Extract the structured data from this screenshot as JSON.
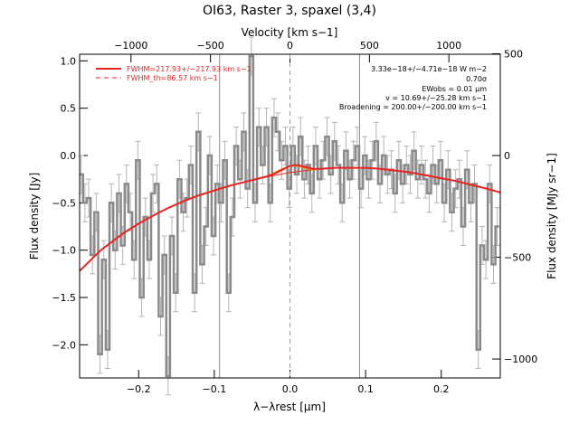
{
  "chart_data": {
    "type": "line",
    "title": "OI63, Raster 3, spaxel (3,4)",
    "xlabel": "λ−λrest [μm]",
    "ylabel": "Flux density [Jy]",
    "top_xlabel": "Velocity [km s−1]",
    "right_ylabel": "Flux density [MJy sr−1]",
    "xlim": [
      -0.278,
      0.278
    ],
    "ylim": [
      -2.35,
      1.07
    ],
    "grid": false,
    "legend_position": "top-left",
    "x_ticks": [
      -0.2,
      -0.1,
      0.0,
      0.1,
      0.2
    ],
    "x_tick_labels": [
      "−0.2",
      "−0.1",
      "0.0",
      "0.1",
      "0.2"
    ],
    "y_ticks": [
      -2.0,
      -1.5,
      -1.0,
      -0.5,
      0.0,
      0.5,
      1.0
    ],
    "y_tick_labels": [
      "−2.0",
      "−1.5",
      "−1.0",
      "−0.5",
      "0.0",
      "0.5",
      "1.0"
    ],
    "velocity_ticks": [
      -1000,
      -500,
      0,
      500,
      1000
    ],
    "velocity_tick_labels": [
      "−1000",
      "−500",
      "0",
      "500",
      "1000"
    ],
    "km_s_per_micron": 4760,
    "right_ticks": [
      500,
      0,
      -500,
      -1000
    ],
    "right_tick_labels": [
      "500",
      "0",
      "−500",
      "−1000"
    ],
    "jy_per_mjysr": 0.00215,
    "vertical_lines_solid": [
      -0.093,
      0.092
    ],
    "vertical_line_dashed": 0.0,
    "legend": [
      {
        "label": "FWHM=217.93+/−217.93 km s−1",
        "style": "solid"
      },
      {
        "label": "FWHM_th=86.57 km s−1",
        "style": "dashed"
      }
    ],
    "annotations": [
      "3.33e−18+/−4.71e−18 W m−2",
      "0.70σ",
      "EWobs = 0.01 μm",
      "v = 10.69+/−25.28 km s−1",
      "Broadening = 200.00+/−200.00 km s−1"
    ],
    "series": [
      {
        "name": "spectrum",
        "x": [
          -0.276,
          -0.271,
          -0.266,
          -0.261,
          -0.256,
          -0.251,
          -0.246,
          -0.241,
          -0.236,
          -0.231,
          -0.226,
          -0.221,
          -0.216,
          -0.211,
          -0.206,
          -0.201,
          -0.196,
          -0.191,
          -0.186,
          -0.181,
          -0.176,
          -0.171,
          -0.166,
          -0.161,
          -0.156,
          -0.151,
          -0.146,
          -0.141,
          -0.136,
          -0.131,
          -0.126,
          -0.121,
          -0.116,
          -0.111,
          -0.106,
          -0.101,
          -0.096,
          -0.091,
          -0.086,
          -0.081,
          -0.076,
          -0.071,
          -0.066,
          -0.061,
          -0.056,
          -0.051,
          -0.046,
          -0.041,
          -0.036,
          -0.031,
          -0.026,
          -0.021,
          -0.016,
          -0.011,
          -0.006,
          -0.001,
          0.004,
          0.009,
          0.014,
          0.019,
          0.024,
          0.029,
          0.034,
          0.039,
          0.044,
          0.049,
          0.054,
          0.059,
          0.064,
          0.069,
          0.074,
          0.079,
          0.084,
          0.089,
          0.094,
          0.099,
          0.104,
          0.109,
          0.114,
          0.119,
          0.124,
          0.129,
          0.134,
          0.139,
          0.144,
          0.149,
          0.154,
          0.159,
          0.164,
          0.169,
          0.174,
          0.179,
          0.184,
          0.189,
          0.194,
          0.199,
          0.204,
          0.209,
          0.214,
          0.219,
          0.224,
          0.229,
          0.234,
          0.239,
          0.244,
          0.249,
          0.254,
          0.259,
          0.264,
          0.269,
          0.274
        ],
        "y": [
          -0.2,
          -0.5,
          -0.45,
          -1.05,
          -0.6,
          -2.1,
          -1.1,
          -2.05,
          -0.5,
          -1.0,
          -0.4,
          -0.95,
          -0.3,
          -0.6,
          -1.1,
          -0.05,
          -1.5,
          -0.65,
          -1.1,
          -0.4,
          -0.3,
          -1.7,
          -1.05,
          -2.33,
          -0.85,
          -1.45,
          -0.25,
          -0.6,
          -0.45,
          -0.1,
          -1.45,
          0.25,
          -1.15,
          -0.75,
          0.0,
          -0.85,
          -0.3,
          -0.5,
          -0.05,
          -1.45,
          -0.65,
          0.1,
          -0.25,
          0.25,
          -0.35,
          1.05,
          -0.5,
          0.3,
          -0.1,
          0.3,
          -0.5,
          0.4,
          0.25,
          -0.05,
          0.1,
          -0.35,
          0.1,
          -0.2,
          0.2,
          -0.25,
          -0.1,
          -0.4,
          0.1,
          -0.25,
          -0.05,
          0.2,
          -0.2,
          0.15,
          -0.1,
          -0.5,
          0.05,
          -0.25,
          -0.05,
          0.1,
          -0.35,
          0.0,
          -0.25,
          -0.05,
          0.15,
          -0.3,
          0.0,
          -0.2,
          -0.15,
          -0.4,
          -0.05,
          -0.3,
          -0.1,
          -0.2,
          0.05,
          -0.25,
          -0.1,
          -0.25,
          -0.4,
          -0.1,
          -0.3,
          -0.05,
          -0.5,
          -0.15,
          -0.6,
          -0.35,
          -0.25,
          -0.75,
          -0.15,
          -0.5,
          -0.3,
          -2.05,
          -0.95,
          -1.1,
          -0.3,
          -1.15,
          -0.75
        ],
        "errors": 0.2
      },
      {
        "name": "fit",
        "x": [
          -0.278,
          -0.25,
          -0.22,
          -0.2,
          -0.18,
          -0.16,
          -0.14,
          -0.12,
          -0.1,
          -0.08,
          -0.06,
          -0.04,
          -0.03,
          -0.02,
          -0.01,
          0.0,
          0.01,
          0.02,
          0.03,
          0.04,
          0.06,
          0.08,
          0.1,
          0.12,
          0.14,
          0.16,
          0.18,
          0.2,
          0.22,
          0.24,
          0.26,
          0.278
        ],
        "y": [
          -1.22,
          -1.0,
          -0.82,
          -0.72,
          -0.63,
          -0.55,
          -0.48,
          -0.42,
          -0.37,
          -0.32,
          -0.28,
          -0.24,
          -0.22,
          -0.19,
          -0.15,
          -0.11,
          -0.1,
          -0.12,
          -0.14,
          -0.14,
          -0.13,
          -0.13,
          -0.13,
          -0.14,
          -0.16,
          -0.18,
          -0.21,
          -0.24,
          -0.27,
          -0.31,
          -0.35,
          -0.39
        ]
      },
      {
        "name": "continuum",
        "x": [
          -0.04,
          -0.02,
          0.0,
          0.02,
          0.04,
          0.06
        ],
        "y": [
          -0.24,
          -0.21,
          -0.18,
          -0.16,
          -0.14,
          -0.13
        ]
      },
      {
        "name": "line_component",
        "x": [
          -0.03,
          -0.02,
          -0.01,
          0.0,
          0.01,
          0.02,
          0.03,
          0.04
        ],
        "y": [
          -0.22,
          -0.18,
          -0.14,
          -0.11,
          -0.11,
          -0.13,
          -0.15,
          -0.14
        ]
      }
    ]
  }
}
